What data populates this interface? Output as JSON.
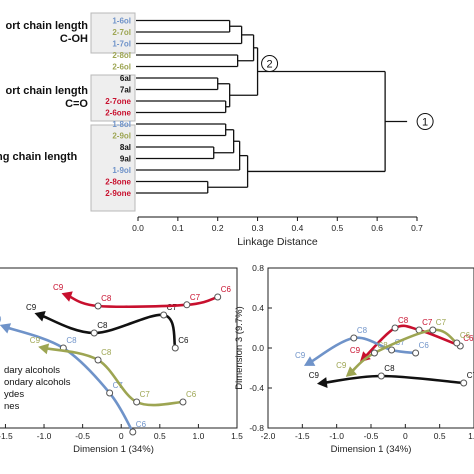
{
  "colors": {
    "primary_alcohol": "#6f93c9",
    "secondary_alcohol": "#9da552",
    "aldehyde": "#111111",
    "ketone": "#c8102e",
    "box_fill": "#eeeeee",
    "box_stroke": "#b8b8b8"
  },
  "chart_data": [
    {
      "type": "dendrogram",
      "xlabel": "Linkage Distance",
      "xlim": [
        0,
        0.7
      ],
      "xticks": [
        "0.0",
        "0.1",
        "0.2",
        "0.3",
        "0.4",
        "0.5",
        "0.6",
        "0.7"
      ],
      "groups": [
        {
          "label_lines": [
            "ort chain length",
            "C-OH"
          ],
          "leaves": [
            "1-6ol",
            "2-7ol",
            "1-7ol",
            "2-8ol",
            "2-6ol"
          ]
        },
        {
          "label_lines": [
            "ort chain length",
            "C=O"
          ],
          "leaves": [
            "6al",
            "7al",
            "2-7one",
            "2-6one"
          ]
        },
        {
          "label_lines": [
            "ng chain length"
          ],
          "leaves": [
            "1-8ol",
            "2-9ol",
            "8al",
            "9al",
            "1-9ol",
            "2-8one",
            "2-9one"
          ]
        }
      ],
      "leaves": [
        {
          "name": "1-6ol",
          "class": "primary_alcohol"
        },
        {
          "name": "2-7ol",
          "class": "secondary_alcohol"
        },
        {
          "name": "1-7ol",
          "class": "primary_alcohol"
        },
        {
          "name": "2-8ol",
          "class": "secondary_alcohol"
        },
        {
          "name": "2-6ol",
          "class": "secondary_alcohol"
        },
        {
          "name": "6al",
          "class": "aldehyde"
        },
        {
          "name": "7al",
          "class": "aldehyde"
        },
        {
          "name": "2-7one",
          "class": "ketone"
        },
        {
          "name": "2-6one",
          "class": "ketone"
        },
        {
          "name": "1-8ol",
          "class": "primary_alcohol"
        },
        {
          "name": "2-9ol",
          "class": "secondary_alcohol"
        },
        {
          "name": "8al",
          "class": "aldehyde"
        },
        {
          "name": "9al",
          "class": "aldehyde"
        },
        {
          "name": "1-9ol",
          "class": "primary_alcohol"
        },
        {
          "name": "2-8one",
          "class": "ketone"
        },
        {
          "name": "2-9one",
          "class": "ketone"
        }
      ],
      "merges": [
        {
          "a": "L0",
          "b": "L1",
          "height": 0.23
        },
        {
          "a": "M0",
          "b": "L2",
          "height": 0.26
        },
        {
          "a": "L3",
          "b": "L4",
          "height": 0.25
        },
        {
          "a": "M1",
          "b": "M2",
          "height": 0.29
        },
        {
          "a": "L5",
          "b": "L6",
          "height": 0.2
        },
        {
          "a": "L7",
          "b": "L8",
          "height": 0.22
        },
        {
          "a": "M4",
          "b": "M5",
          "height": 0.23
        },
        {
          "a": "M3",
          "b": "M6",
          "height": 0.3
        },
        {
          "a": "L9",
          "b": "L10",
          "height": 0.22
        },
        {
          "a": "L11",
          "b": "L12",
          "height": 0.19
        },
        {
          "a": "M8",
          "b": "M9",
          "height": 0.24
        },
        {
          "a": "M10",
          "b": "L13",
          "height": 0.255
        },
        {
          "a": "L14",
          "b": "L15",
          "height": 0.175
        },
        {
          "a": "M11",
          "b": "M12",
          "height": 0.275
        },
        {
          "a": "M7",
          "b": "M13",
          "height": 0.62
        }
      ],
      "node_markers": [
        {
          "label": "2",
          "node": "M7"
        },
        {
          "label": "1",
          "node": "M14"
        }
      ]
    },
    {
      "type": "line",
      "xlabel": "Dimension 1 (34%)",
      "ylabel": "",
      "xlim": [
        -1.7,
        1.5
      ],
      "xticks": [
        "-1.5",
        "-1.0",
        "-0.5",
        "0",
        "0.5",
        "1.0",
        "1.5"
      ],
      "series": [
        {
          "class": "aldehyde",
          "points": [
            {
              "label": "C6",
              "x": 0.7,
              "y": -0.6
            },
            {
              "label": "C7",
              "x": 0.55,
              "y": -0.05
            },
            {
              "label": "C8",
              "x": -0.35,
              "y": -0.35
            },
            {
              "label": "C9",
              "x": -1.05,
              "y": -0.05
            }
          ]
        },
        {
          "class": "ketone",
          "points": [
            {
              "label": "C6",
              "x": 1.25,
              "y": 0.25
            },
            {
              "label": "C7",
              "x": 0.85,
              "y": 0.12
            },
            {
              "label": "C8",
              "x": -0.3,
              "y": 0.1
            },
            {
              "label": "C9",
              "x": -0.7,
              "y": 0.28
            }
          ]
        },
        {
          "class": "primary_alcohol",
          "points": [
            {
              "label": "C6",
              "x": 0.15,
              "y": -2.0
            },
            {
              "label": "C7",
              "x": -0.15,
              "y": -1.35
            },
            {
              "label": "C8",
              "x": -0.75,
              "y": -0.6
            },
            {
              "label": "C9",
              "x": -1.5,
              "y": -0.25
            }
          ]
        },
        {
          "class": "secondary_alcohol",
          "points": [
            {
              "label": "C6",
              "x": 0.8,
              "y": -1.5
            },
            {
              "label": "C7",
              "x": 0.2,
              "y": -1.5
            },
            {
              "label": "C8",
              "x": -0.3,
              "y": -0.8
            },
            {
              "label": "C9",
              "x": -1.0,
              "y": -0.6
            }
          ]
        }
      ],
      "legend": [
        "dary alcohols",
        "ondary alcohols",
        "ydes",
        "nes"
      ],
      "legend_position": "bottom-left"
    },
    {
      "type": "line",
      "xlabel": "Dimension 1 (34%)",
      "ylabel": "Dimension 3 (9.7%)",
      "xlim": [
        -2.0,
        1.0
      ],
      "ylim": [
        -0.8,
        0.8
      ],
      "xticks": [
        "-2.0",
        "-1.5",
        "-1.0",
        "-0.5",
        "0",
        "0.5",
        "1.0"
      ],
      "yticks": [
        "0.8",
        "0.4",
        "0.0",
        "-0.4",
        "-0.8"
      ],
      "series": [
        {
          "class": "aldehyde",
          "points": [
            {
              "label": "C7",
              "x": 0.85,
              "y": -0.35
            },
            {
              "label": "C8",
              "x": -0.35,
              "y": -0.28
            },
            {
              "label": "C9",
              "x": -1.2,
              "y": -0.35
            }
          ]
        },
        {
          "class": "ketone",
          "points": [
            {
              "label": "C6",
              "x": 0.8,
              "y": 0.02
            },
            {
              "label": "C7",
              "x": 0.2,
              "y": 0.18
            },
            {
              "label": "C8",
              "x": -0.15,
              "y": 0.2
            },
            {
              "label": "C9",
              "x": -0.6,
              "y": -0.1
            }
          ]
        },
        {
          "class": "primary_alcohol",
          "points": [
            {
              "label": "C6",
              "x": 0.15,
              "y": -0.05
            },
            {
              "label": "C7",
              "x": -0.2,
              "y": -0.02
            },
            {
              "label": "C8",
              "x": -0.75,
              "y": 0.1
            },
            {
              "label": "C9",
              "x": -1.4,
              "y": -0.15
            }
          ]
        },
        {
          "class": "secondary_alcohol",
          "points": [
            {
              "label": "C6",
              "x": 0.75,
              "y": 0.05
            },
            {
              "label": "C7",
              "x": 0.4,
              "y": 0.18
            },
            {
              "label": "C8",
              "x": -0.45,
              "y": -0.05
            },
            {
              "label": "C9",
              "x": -0.8,
              "y": -0.25
            }
          ]
        }
      ]
    }
  ]
}
